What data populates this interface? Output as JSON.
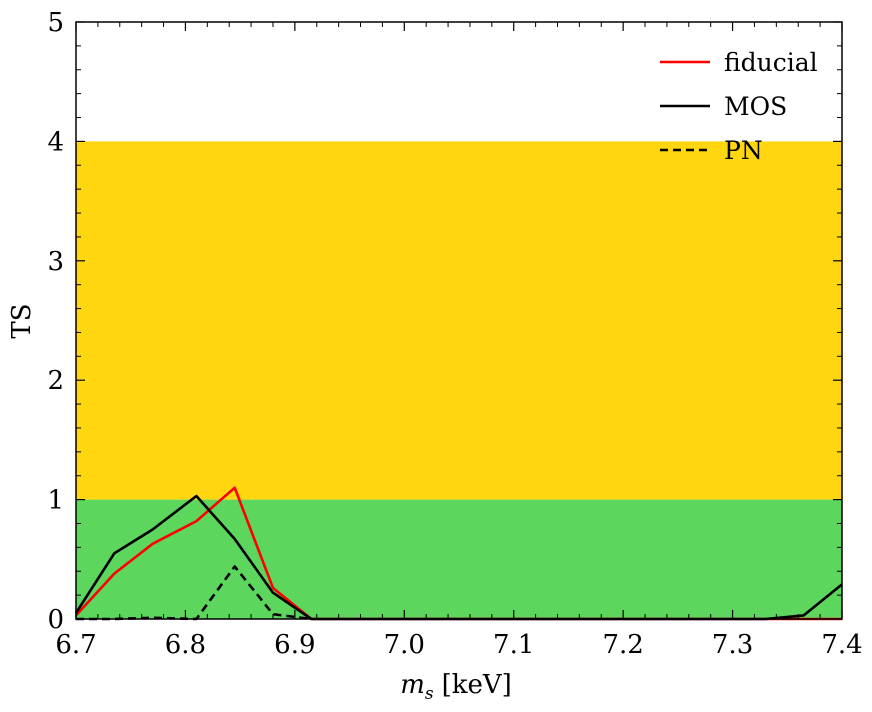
{
  "chart_data": {
    "type": "line",
    "title": "",
    "xlabel": "m",
    "xlabel_subscript": "s",
    "xlabel_unit": "[keV]",
    "ylabel": "TS",
    "xlim": [
      6.7,
      7.4
    ],
    "ylim": [
      0,
      5
    ],
    "xticks": [
      "6.7",
      "6.8",
      "6.9",
      "7.0",
      "7.1",
      "7.2",
      "7.3",
      "7.4"
    ],
    "yticks": [
      "0",
      "1",
      "2",
      "3",
      "4",
      "5"
    ],
    "grid": false,
    "legend_position": "top-right",
    "bands": [
      {
        "y0": 0,
        "y1": 1,
        "color": "#5cd65c"
      },
      {
        "y0": 1,
        "y1": 4,
        "color": "#ffd60f"
      }
    ],
    "series": [
      {
        "name": "fiducial",
        "color": "#ff0000",
        "style": "solid",
        "x": [
          6.7,
          6.735,
          6.77,
          6.81,
          6.845,
          6.88,
          6.915,
          7.4
        ],
        "y": [
          0.03,
          0.38,
          0.63,
          0.82,
          1.1,
          0.26,
          0.0,
          0.0
        ]
      },
      {
        "name": "MOS",
        "color": "#000000",
        "style": "solid",
        "x": [
          6.7,
          6.735,
          6.77,
          6.81,
          6.845,
          6.88,
          6.915,
          7.33,
          7.365,
          7.4
        ],
        "y": [
          0.05,
          0.55,
          0.75,
          1.03,
          0.67,
          0.22,
          0.0,
          0.0,
          0.03,
          0.29
        ]
      },
      {
        "name": "PN",
        "color": "#000000",
        "style": "dashed",
        "x": [
          6.7,
          6.735,
          6.77,
          6.81,
          6.845,
          6.88,
          6.915
        ],
        "y": [
          0.0,
          0.0,
          0.01,
          0.0,
          0.44,
          0.04,
          0.0
        ]
      }
    ]
  }
}
